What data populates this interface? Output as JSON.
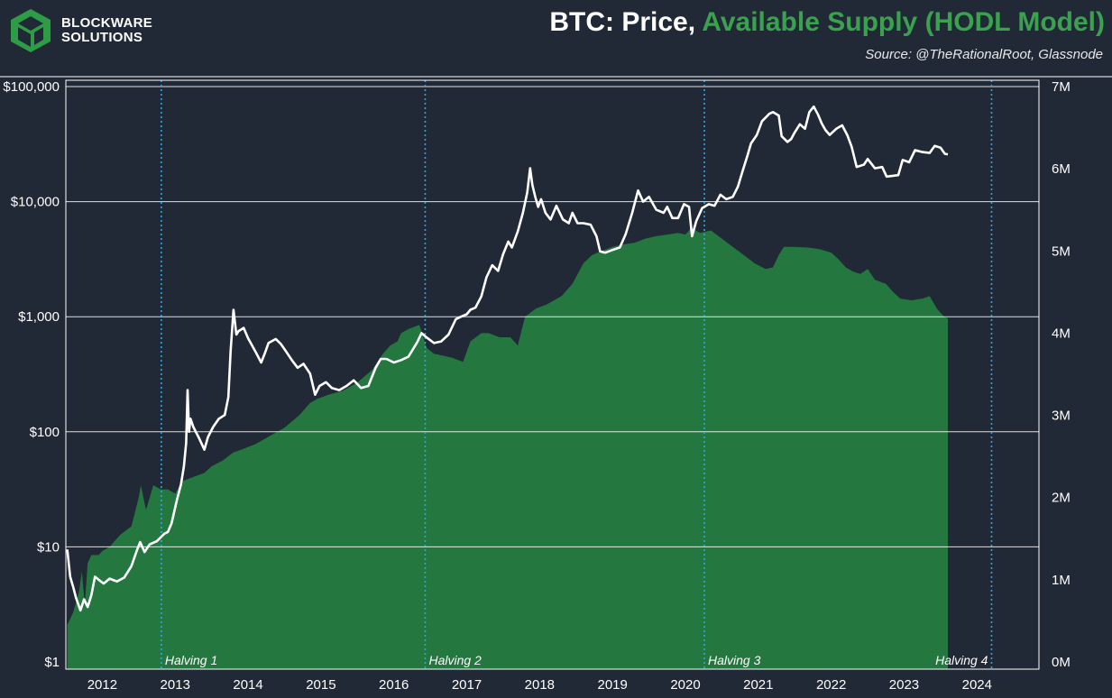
{
  "brand": {
    "line1": "BLOCKWARE",
    "line2": "SOLUTIONS",
    "logo_color": "#2e9b46"
  },
  "header": {
    "title_part1": "BTC: Price, ",
    "title_part2": "Available Supply (HODL Model)",
    "source": "Source: @TheRationalRoot, Glassnode"
  },
  "chart_data": {
    "type": "area",
    "colors": {
      "background": "#212836",
      "price_line": "#ffffff",
      "supply_fill": "#23773f",
      "grid": "#ffffff",
      "halving_line": "#2ba9e6"
    },
    "x_axis": {
      "ticks": [
        "2012",
        "2013",
        "2014",
        "2015",
        "2016",
        "2017",
        "2018",
        "2019",
        "2020",
        "2021",
        "2022",
        "2023",
        "2024"
      ],
      "range": [
        2011.6,
        2024.95
      ]
    },
    "y_left": {
      "scale": "log",
      "range": [
        1,
        100000
      ],
      "ticks": [
        "$1",
        "$10",
        "$100",
        "$1,000",
        "$10,000",
        "$100,000"
      ]
    },
    "y_right": {
      "range": [
        0,
        7000000
      ],
      "ticks": [
        "0M",
        "1M",
        "2M",
        "3M",
        "4M",
        "5M",
        "6M",
        "7M"
      ]
    },
    "halvings": [
      {
        "label": "Halving 1",
        "date": 2012.91
      },
      {
        "label": "Halving 2",
        "date": 2016.53
      },
      {
        "label": "Halving 3",
        "date": 2020.36
      },
      {
        "label": "Halving 4",
        "date": 2024.3
      }
    ],
    "series": [
      {
        "type": "line",
        "axis": "left",
        "points": [
          [
            2011.62,
            9.5
          ],
          [
            2011.66,
            5.5
          ],
          [
            2011.7,
            4.5
          ],
          [
            2011.74,
            3.6
          ],
          [
            2011.8,
            2.8
          ],
          [
            2011.85,
            3.5
          ],
          [
            2011.9,
            3.0
          ],
          [
            2011.95,
            3.8
          ],
          [
            2012.0,
            5.5
          ],
          [
            2012.08,
            5.0
          ],
          [
            2012.12,
            4.8
          ],
          [
            2012.2,
            5.3
          ],
          [
            2012.3,
            5.0
          ],
          [
            2012.4,
            5.4
          ],
          [
            2012.5,
            6.8
          ],
          [
            2012.58,
            9.5
          ],
          [
            2012.62,
            11.0
          ],
          [
            2012.68,
            9.0
          ],
          [
            2012.75,
            10.5
          ],
          [
            2012.85,
            11.2
          ],
          [
            2012.95,
            13.0
          ],
          [
            2013.0,
            13.5
          ],
          [
            2013.05,
            16.0
          ],
          [
            2013.12,
            25.0
          ],
          [
            2013.18,
            35.0
          ],
          [
            2013.22,
            50.0
          ],
          [
            2013.25,
            80.0
          ],
          [
            2013.27,
            230.0
          ],
          [
            2013.29,
            100.0
          ],
          [
            2013.31,
            130.0
          ],
          [
            2013.35,
            110.0
          ],
          [
            2013.42,
            90.0
          ],
          [
            2013.5,
            70.0
          ],
          [
            2013.55,
            90.0
          ],
          [
            2013.62,
            110.0
          ],
          [
            2013.7,
            130.0
          ],
          [
            2013.78,
            140.0
          ],
          [
            2013.83,
            200.0
          ],
          [
            2013.86,
            500.0
          ],
          [
            2013.9,
            1150.0
          ],
          [
            2013.94,
            700.0
          ],
          [
            2013.97,
            750.0
          ],
          [
            2014.04,
            800.0
          ],
          [
            2014.1,
            650.0
          ],
          [
            2014.2,
            500.0
          ],
          [
            2014.28,
            400.0
          ],
          [
            2014.33,
            480.0
          ],
          [
            2014.38,
            590.0
          ],
          [
            2014.48,
            640.0
          ],
          [
            2014.55,
            580.0
          ],
          [
            2014.62,
            500.0
          ],
          [
            2014.7,
            420.0
          ],
          [
            2014.78,
            360.0
          ],
          [
            2014.86,
            390.0
          ],
          [
            2014.95,
            320.0
          ],
          [
            2015.02,
            210.0
          ],
          [
            2015.08,
            250.0
          ],
          [
            2015.17,
            270.0
          ],
          [
            2015.25,
            240.0
          ],
          [
            2015.35,
            230.0
          ],
          [
            2015.45,
            250.0
          ],
          [
            2015.55,
            280.0
          ],
          [
            2015.65,
            240.0
          ],
          [
            2015.75,
            250.0
          ],
          [
            2015.85,
            360.0
          ],
          [
            2015.92,
            430.0
          ],
          [
            2016.0,
            430.0
          ],
          [
            2016.1,
            400.0
          ],
          [
            2016.2,
            420.0
          ],
          [
            2016.3,
            450.0
          ],
          [
            2016.42,
            600.0
          ],
          [
            2016.48,
            720.0
          ],
          [
            2016.55,
            660.0
          ],
          [
            2016.65,
            590.0
          ],
          [
            2016.75,
            610.0
          ],
          [
            2016.85,
            700.0
          ],
          [
            2016.95,
            950.0
          ],
          [
            2017.02,
            1000.0
          ],
          [
            2017.1,
            1050.0
          ],
          [
            2017.15,
            1150.0
          ],
          [
            2017.22,
            1200.0
          ],
          [
            2017.3,
            1500.0
          ],
          [
            2017.37,
            2200.0
          ],
          [
            2017.45,
            2800.0
          ],
          [
            2017.53,
            2500.0
          ],
          [
            2017.6,
            3500.0
          ],
          [
            2017.67,
            4500.0
          ],
          [
            2017.72,
            4000.0
          ],
          [
            2017.8,
            5500.0
          ],
          [
            2017.87,
            8000.0
          ],
          [
            2017.93,
            12000.0
          ],
          [
            2017.97,
            19500.0
          ],
          [
            2018.0,
            14000.0
          ],
          [
            2018.04,
            11000.0
          ],
          [
            2018.08,
            9000.0
          ],
          [
            2018.12,
            10500.0
          ],
          [
            2018.18,
            8000.0
          ],
          [
            2018.25,
            7000.0
          ],
          [
            2018.33,
            9200.0
          ],
          [
            2018.42,
            7000.0
          ],
          [
            2018.5,
            6500.0
          ],
          [
            2018.55,
            8000.0
          ],
          [
            2018.62,
            6500.0
          ],
          [
            2018.7,
            6500.0
          ],
          [
            2018.8,
            6300.0
          ],
          [
            2018.88,
            5000.0
          ],
          [
            2018.93,
            3700.0
          ],
          [
            2019.0,
            3600.0
          ],
          [
            2019.1,
            3800.0
          ],
          [
            2019.2,
            4000.0
          ],
          [
            2019.28,
            5200.0
          ],
          [
            2019.37,
            8000.0
          ],
          [
            2019.45,
            12500.0
          ],
          [
            2019.52,
            10000.0
          ],
          [
            2019.6,
            11000.0
          ],
          [
            2019.7,
            8500.0
          ],
          [
            2019.8,
            8000.0
          ],
          [
            2019.85,
            9000.0
          ],
          [
            2019.92,
            7200.0
          ],
          [
            2020.0,
            7200.0
          ],
          [
            2020.08,
            9500.0
          ],
          [
            2020.15,
            9000.0
          ],
          [
            2020.19,
            5000.0
          ],
          [
            2020.25,
            6800.0
          ],
          [
            2020.33,
            8800.0
          ],
          [
            2020.42,
            9500.0
          ],
          [
            2020.5,
            9200.0
          ],
          [
            2020.58,
            11500.0
          ],
          [
            2020.66,
            10500.0
          ],
          [
            2020.75,
            11000.0
          ],
          [
            2020.82,
            13500.0
          ],
          [
            2020.88,
            18000.0
          ],
          [
            2020.95,
            25000.0
          ],
          [
            2021.0,
            32000.0
          ],
          [
            2021.08,
            38000.0
          ],
          [
            2021.15,
            50000.0
          ],
          [
            2021.25,
            58000.0
          ],
          [
            2021.3,
            60000.0
          ],
          [
            2021.38,
            56000.0
          ],
          [
            2021.42,
            37000.0
          ],
          [
            2021.5,
            33000.0
          ],
          [
            2021.55,
            35000.0
          ],
          [
            2021.6,
            40000.0
          ],
          [
            2021.67,
            47000.0
          ],
          [
            2021.74,
            43000.0
          ],
          [
            2021.8,
            60000.0
          ],
          [
            2021.86,
            67000.0
          ],
          [
            2021.92,
            57000.0
          ],
          [
            2021.97,
            48000.0
          ],
          [
            2022.02,
            42000.0
          ],
          [
            2022.08,
            38000.0
          ],
          [
            2022.17,
            43000.0
          ],
          [
            2022.25,
            46000.0
          ],
          [
            2022.32,
            38000.0
          ],
          [
            2022.38,
            30000.0
          ],
          [
            2022.45,
            20000.0
          ],
          [
            2022.55,
            21000.0
          ],
          [
            2022.6,
            23500.0
          ],
          [
            2022.7,
            19500.0
          ],
          [
            2022.8,
            20000.0
          ],
          [
            2022.86,
            16500.0
          ],
          [
            2022.95,
            16800.0
          ],
          [
            2023.02,
            17000.0
          ],
          [
            2023.08,
            23000.0
          ],
          [
            2023.17,
            22000.0
          ],
          [
            2023.25,
            28000.0
          ],
          [
            2023.35,
            27000.0
          ],
          [
            2023.45,
            26500.0
          ],
          [
            2023.52,
            30500.0
          ],
          [
            2023.6,
            29500.0
          ],
          [
            2023.66,
            26000.0
          ],
          [
            2023.7,
            25800.0
          ]
        ]
      },
      {
        "type": "area",
        "axis": "right",
        "points": [
          [
            2011.62,
            0.45
          ],
          [
            2011.7,
            0.6
          ],
          [
            2011.78,
            0.85
          ],
          [
            2011.82,
            1.1
          ],
          [
            2011.86,
            0.7
          ],
          [
            2011.9,
            1.2
          ],
          [
            2011.95,
            1.3
          ],
          [
            2012.05,
            1.3
          ],
          [
            2012.1,
            1.35
          ],
          [
            2012.2,
            1.4
          ],
          [
            2012.35,
            1.55
          ],
          [
            2012.5,
            1.65
          ],
          [
            2012.6,
            2.0
          ],
          [
            2012.63,
            2.15
          ],
          [
            2012.7,
            1.85
          ],
          [
            2012.8,
            2.15
          ],
          [
            2012.9,
            2.1
          ],
          [
            2013.0,
            2.1
          ],
          [
            2013.1,
            2.05
          ],
          [
            2013.2,
            2.2
          ],
          [
            2013.35,
            2.25
          ],
          [
            2013.5,
            2.3
          ],
          [
            2013.6,
            2.38
          ],
          [
            2013.75,
            2.45
          ],
          [
            2013.9,
            2.55
          ],
          [
            2014.0,
            2.58
          ],
          [
            2014.2,
            2.65
          ],
          [
            2014.4,
            2.75
          ],
          [
            2014.6,
            2.85
          ],
          [
            2014.8,
            3.0
          ],
          [
            2014.95,
            3.15
          ],
          [
            2015.05,
            3.2
          ],
          [
            2015.2,
            3.25
          ],
          [
            2015.4,
            3.3
          ],
          [
            2015.6,
            3.4
          ],
          [
            2015.8,
            3.55
          ],
          [
            2015.95,
            3.75
          ],
          [
            2016.05,
            3.85
          ],
          [
            2016.15,
            3.9
          ],
          [
            2016.2,
            4.0
          ],
          [
            2016.3,
            4.05
          ],
          [
            2016.45,
            4.1
          ],
          [
            2016.55,
            3.82
          ],
          [
            2016.65,
            3.75
          ],
          [
            2016.8,
            3.72
          ],
          [
            2016.9,
            3.7
          ],
          [
            2017.05,
            3.65
          ],
          [
            2017.15,
            3.9
          ],
          [
            2017.3,
            4.0
          ],
          [
            2017.4,
            4.0
          ],
          [
            2017.55,
            3.95
          ],
          [
            2017.7,
            3.95
          ],
          [
            2017.8,
            3.85
          ],
          [
            2017.9,
            4.2
          ],
          [
            2018.05,
            4.3
          ],
          [
            2018.2,
            4.35
          ],
          [
            2018.4,
            4.45
          ],
          [
            2018.55,
            4.6
          ],
          [
            2018.7,
            4.85
          ],
          [
            2018.82,
            4.95
          ],
          [
            2018.95,
            5.0
          ],
          [
            2019.1,
            5.05
          ],
          [
            2019.25,
            5.08
          ],
          [
            2019.4,
            5.1
          ],
          [
            2019.55,
            5.15
          ],
          [
            2019.7,
            5.18
          ],
          [
            2019.85,
            5.2
          ],
          [
            2020.0,
            5.22
          ],
          [
            2020.1,
            5.2
          ],
          [
            2020.18,
            5.28
          ],
          [
            2020.3,
            5.22
          ],
          [
            2020.45,
            5.25
          ],
          [
            2020.6,
            5.15
          ],
          [
            2020.75,
            5.05
          ],
          [
            2020.9,
            4.95
          ],
          [
            2021.05,
            4.85
          ],
          [
            2021.2,
            4.78
          ],
          [
            2021.3,
            4.8
          ],
          [
            2021.38,
            4.95
          ],
          [
            2021.45,
            5.05
          ],
          [
            2021.6,
            5.05
          ],
          [
            2021.8,
            5.04
          ],
          [
            2021.95,
            5.02
          ],
          [
            2022.1,
            4.98
          ],
          [
            2022.2,
            4.9
          ],
          [
            2022.3,
            4.8
          ],
          [
            2022.4,
            4.75
          ],
          [
            2022.5,
            4.72
          ],
          [
            2022.6,
            4.78
          ],
          [
            2022.7,
            4.65
          ],
          [
            2022.85,
            4.6
          ],
          [
            2022.95,
            4.5
          ],
          [
            2023.05,
            4.42
          ],
          [
            2023.2,
            4.4
          ],
          [
            2023.35,
            4.42
          ],
          [
            2023.45,
            4.45
          ],
          [
            2023.55,
            4.3
          ],
          [
            2023.65,
            4.2
          ],
          [
            2023.7,
            4.18
          ]
        ]
      }
    ]
  }
}
